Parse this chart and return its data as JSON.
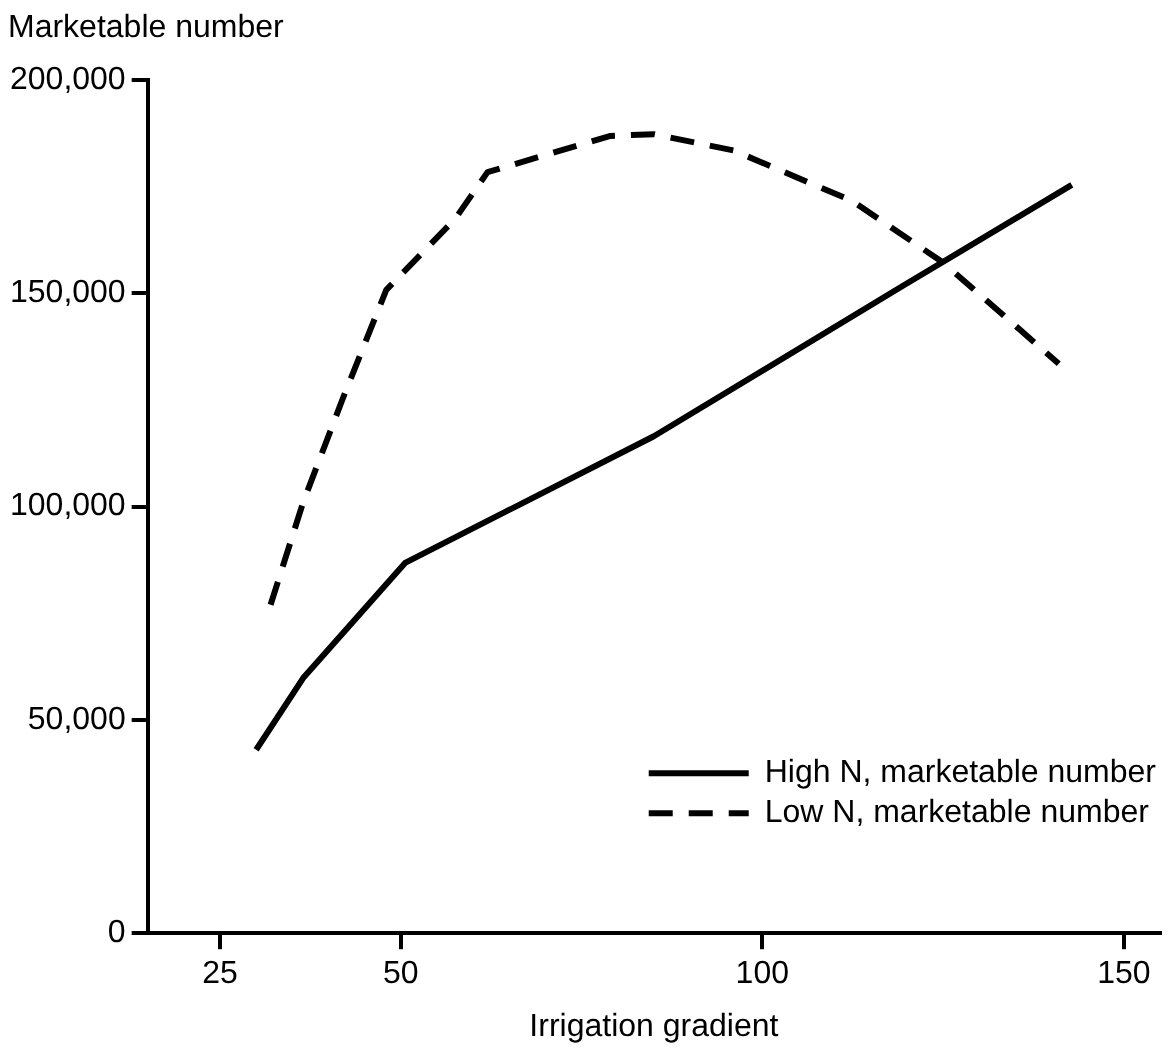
{
  "chart_data": {
    "type": "line",
    "xlabel": "Irrigation gradient",
    "ylabel": "Marketable number",
    "xlim": [
      15,
      155
    ],
    "xticks": [
      25,
      50,
      100,
      150
    ],
    "ylim": [
      0,
      200000
    ],
    "yticks": [
      {
        "value": 0,
        "label": "0"
      },
      {
        "value": 50000,
        "label": "50,000"
      },
      {
        "value": 100000,
        "label": "100,000"
      },
      {
        "value": 150000,
        "label": "150,000"
      },
      {
        "value": 200000,
        "label": "200,000"
      }
    ],
    "grid": false,
    "legend": "bottom right",
    "marker": "none",
    "series": [
      {
        "name": "High N, marketable number",
        "color": "#000000",
        "line_style": "solid",
        "x": [
          30,
          36.5,
          50.6,
          85,
          119.4,
          142.8
        ],
        "values": [
          43000,
          59800,
          86800,
          116500,
          151700,
          175400
        ]
      },
      {
        "name": "Low N, marketable number",
        "color": "#000000",
        "line_style": "dashed",
        "x": [
          32,
          36.5,
          42,
          48,
          57.5,
          62,
          79,
          85,
          96,
          112.5,
          125,
          141
        ],
        "values": [
          77000,
          101000,
          125400,
          150800,
          167400,
          178400,
          186900,
          187300,
          183500,
          171600,
          157200,
          133500
        ]
      }
    ]
  }
}
